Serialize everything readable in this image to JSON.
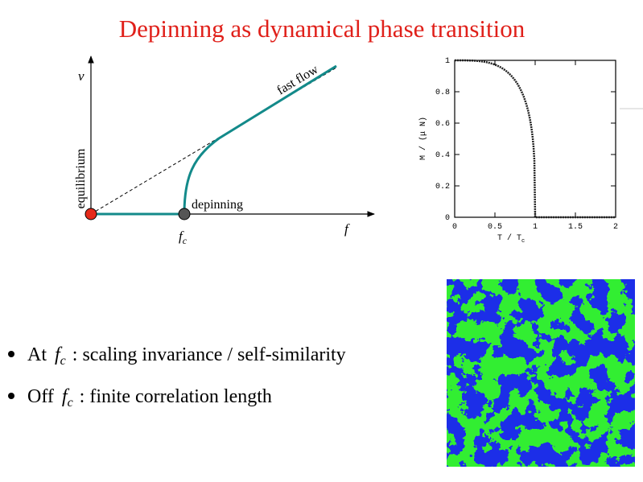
{
  "title": "Depinning as dynamical phase transition",
  "diagram": {
    "y_label": "v",
    "x_label": "f",
    "fast_flow": "fast flow",
    "equilibrium": "equilibrium",
    "depinning": "depinning",
    "critical_base": "f",
    "critical_sub": "c"
  },
  "plot": {
    "y_label": "M / (μ N)",
    "x_label_base": "T / T",
    "x_label_sub": "c",
    "xlim": [
      0,
      2
    ],
    "ylim": [
      0,
      1
    ],
    "xticks": [
      0,
      0.5,
      1,
      1.5,
      2
    ],
    "yticks": [
      0,
      0.2,
      0.4,
      0.6,
      0.8,
      1
    ]
  },
  "bullets": [
    {
      "lead": "At",
      "symbol_base": "f",
      "symbol_sub": "c",
      "rest": ": scaling invariance / self-similarity"
    },
    {
      "lead": "Off",
      "symbol_base": "f",
      "symbol_sub": "c",
      "rest": ": finite correlation length"
    }
  ]
}
